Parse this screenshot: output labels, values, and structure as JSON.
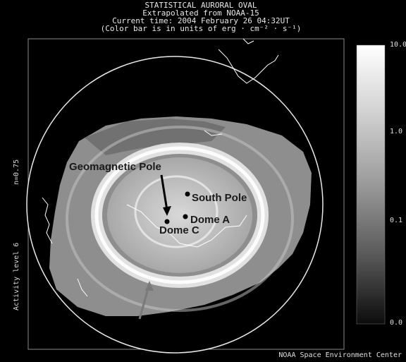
{
  "header": {
    "line1": "STATISTICAL AURORAL OVAL",
    "line2": "Extrapolated from NOAA-15",
    "line3": "Current time: 2004 February 26 04:32UT",
    "line4": "(Color bar is in units of erg · cm⁻² · s⁻¹)"
  },
  "side": {
    "activity": "Activity level 6",
    "n": "n=0.75"
  },
  "colorbar": {
    "ticks": [
      "10.0",
      "1.0",
      "0.1",
      "0.0"
    ],
    "scale": "log",
    "colors": [
      "#ffffff",
      "#101010"
    ]
  },
  "annotations": {
    "geomagnetic_pole": "Geomagnetic Pole",
    "south_pole": "South Pole",
    "dome_a": "Dome A",
    "dome_c": "Dome C"
  },
  "footer": {
    "credit": "NOAA Space Environment Center"
  }
}
